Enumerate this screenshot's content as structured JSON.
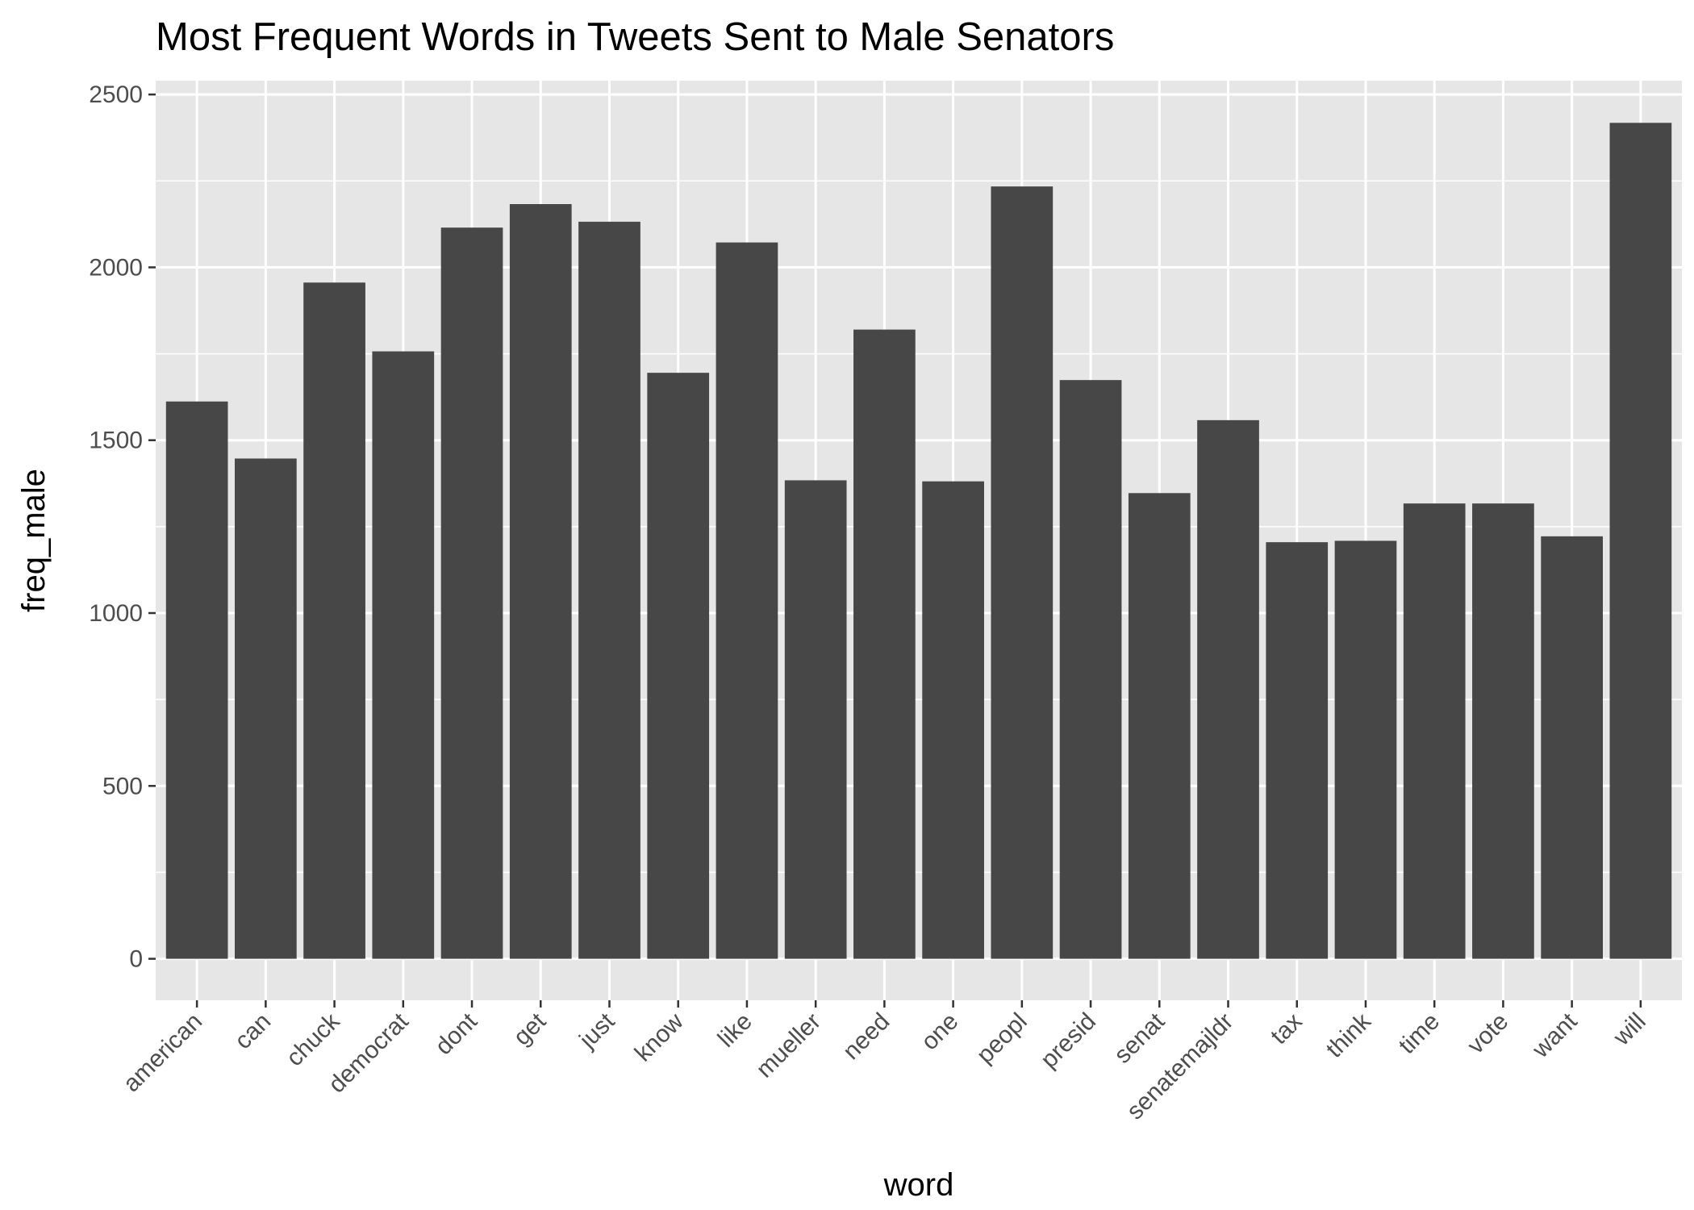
{
  "chart_data": {
    "type": "bar",
    "title": "Most Frequent Words in Tweets Sent to Male Senators",
    "xlabel": "word",
    "ylabel": "freq_male",
    "categories": [
      "american",
      "can",
      "chuck",
      "democrat",
      "dont",
      "get",
      "just",
      "know",
      "like",
      "mueller",
      "need",
      "one",
      "peopl",
      "presid",
      "senat",
      "senatemajldr",
      "tax",
      "think",
      "time",
      "vote",
      "want",
      "will"
    ],
    "values": [
      1612,
      1447,
      1956,
      1757,
      2115,
      2183,
      2132,
      1695,
      2072,
      1384,
      1820,
      1381,
      2234,
      1674,
      1347,
      1558,
      1205,
      1209,
      1317,
      1317,
      1222,
      2418
    ],
    "yticks": [
      0,
      500,
      1000,
      1500,
      2000,
      2500
    ],
    "ylim": [
      -120,
      2540
    ],
    "grid": true,
    "bar_color": "#474747",
    "panel_color": "#e6e6e6",
    "grid_color": "#ffffff"
  }
}
